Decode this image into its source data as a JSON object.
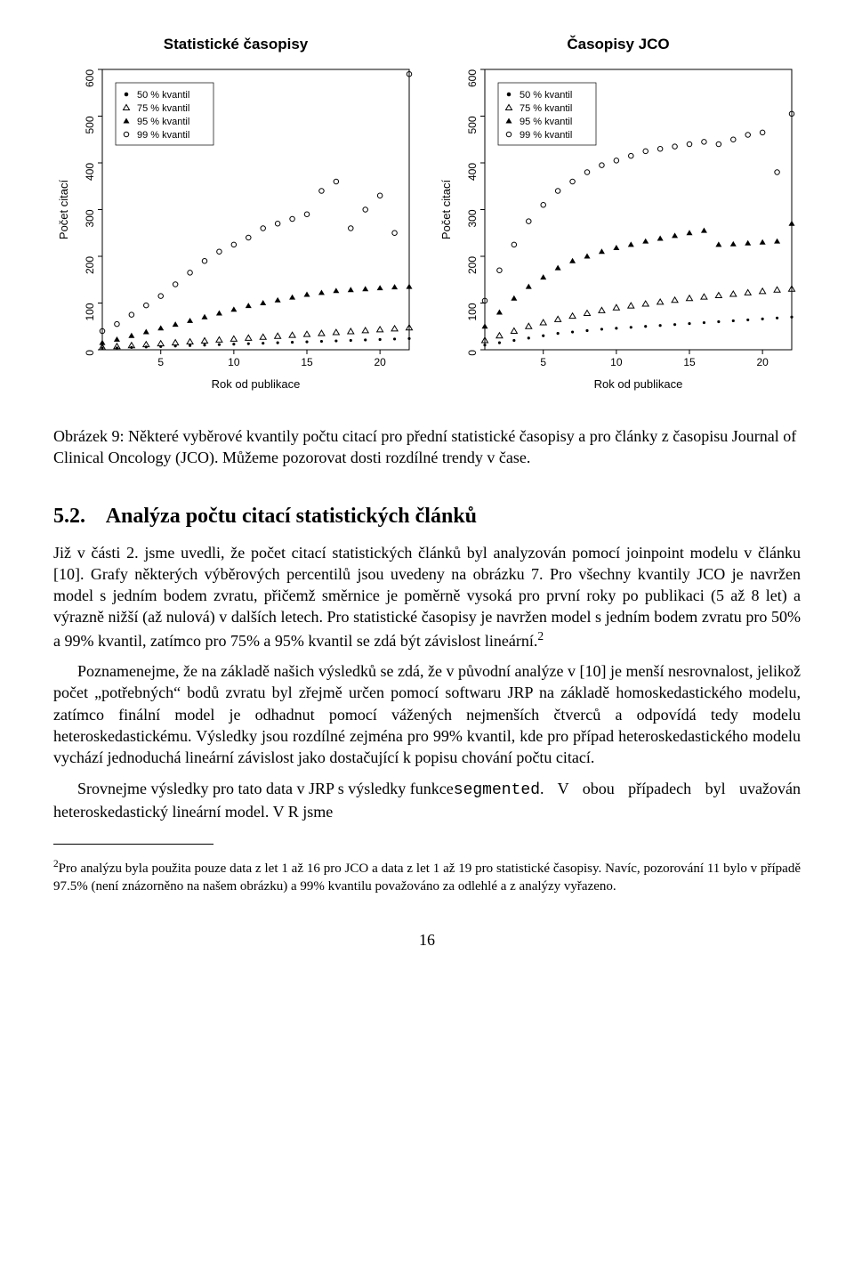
{
  "charts": {
    "left": {
      "title": "Statistické časopisy",
      "ylabel": "Počet citací",
      "xlabel": "Rok od publikace",
      "xticks": [
        5,
        10,
        15,
        20
      ],
      "yticks": [
        0,
        100,
        200,
        300,
        400,
        500,
        600
      ],
      "xlim": [
        1,
        22
      ],
      "ylim": [
        0,
        600
      ],
      "legend_items": [
        "50 % kvantil",
        "75 % kvantil",
        "95 % kvantil",
        "99 % kvantil"
      ],
      "legend_markers": [
        "filled-circle",
        "open-triangle",
        "filled-triangle",
        "open-circle"
      ],
      "q50": [
        3,
        4,
        5,
        6,
        7,
        8,
        9,
        10,
        11,
        12,
        13,
        14,
        15,
        16,
        17,
        18,
        19,
        20,
        21,
        22,
        23,
        24
      ],
      "q75": [
        5,
        7,
        9,
        11,
        13,
        15,
        17,
        19,
        21,
        23,
        25,
        27,
        29,
        31,
        33,
        35,
        37,
        39,
        41,
        43,
        45,
        47
      ],
      "q95": [
        15,
        22,
        30,
        38,
        46,
        54,
        62,
        70,
        78,
        86,
        94,
        100,
        106,
        112,
        118,
        122,
        126,
        128,
        130,
        132,
        134,
        135
      ],
      "q99": [
        40,
        55,
        75,
        95,
        115,
        140,
        165,
        190,
        210,
        225,
        240,
        260,
        270,
        280,
        290,
        340,
        360,
        260,
        300,
        330,
        250,
        590
      ],
      "marker_color": "#000000",
      "bg": "#ffffff"
    },
    "right": {
      "title": "Časopisy JCO",
      "ylabel": "Počet citací",
      "xlabel": "Rok od publikace",
      "xticks": [
        5,
        10,
        15,
        20
      ],
      "yticks": [
        0,
        100,
        200,
        300,
        400,
        500,
        600
      ],
      "xlim": [
        1,
        22
      ],
      "ylim": [
        0,
        600
      ],
      "legend_items": [
        "50 % kvantil",
        "75 % kvantil",
        "95 % kvantil",
        "99 % kvantil"
      ],
      "legend_markers": [
        "filled-circle",
        "open-triangle",
        "filled-triangle",
        "open-circle"
      ],
      "q50": [
        10,
        15,
        20,
        25,
        30,
        35,
        38,
        41,
        44,
        46,
        48,
        50,
        52,
        54,
        56,
        58,
        60,
        62,
        64,
        66,
        68,
        70
      ],
      "q75": [
        20,
        30,
        40,
        50,
        58,
        65,
        72,
        78,
        84,
        90,
        94,
        98,
        102,
        106,
        110,
        113,
        116,
        119,
        122,
        125,
        128,
        130
      ],
      "q95": [
        50,
        80,
        110,
        135,
        155,
        175,
        190,
        200,
        210,
        218,
        225,
        232,
        238,
        244,
        250,
        255,
        225,
        226,
        228,
        230,
        232,
        270
      ],
      "q99": [
        105,
        170,
        225,
        275,
        310,
        340,
        360,
        380,
        395,
        405,
        415,
        425,
        430,
        435,
        440,
        445,
        440,
        450,
        460,
        465,
        380,
        505
      ],
      "marker_color": "#000000",
      "bg": "#ffffff"
    }
  },
  "caption": "Obrázek 9: Některé vyběrové kvantily počtu citací pro přední statistické časopisy a pro články z časopisu Journal of Clinical Oncology (JCO). Můžeme pozorovat dosti rozdílné trendy v čase.",
  "section": {
    "number": "5.2.",
    "title": "Analýza počtu citací statistických článků"
  },
  "para1": "Již v části 2. jsme uvedli, že počet citací statistických článků byl analyzován pomocí joinpoint modelu v článku [10]. Grafy některých výběrových percentilů jsou uvedeny na obrázku 7. Pro všechny kvantily JCO je navržen model s jedním bodem zvratu, přičemž směrnice je poměrně vysoká pro první roky po publikaci (5 až 8 let) a výrazně nižší (až nulová) v dalších letech. Pro statistické časopisy je navržen model s jedním bodem zvratu pro 50% a 99% kvantil, zatímco pro 75% a 95% kvantil se zdá být závislost lineární.",
  "para1_sup": "2",
  "para2": "Poznamenejme, že na základě našich výsledků se zdá, že v původní analýze v [10] je menší nesrovnalost, jelikož počet „potřebných“ bodů zvratu byl zřejmě určen pomocí softwaru JRP na základě homoskedastického modelu, zatímco finální model je odhadnut pomocí vážených nejmenších čtverců a odpovídá tedy modelu heteroskedastickému. Výsledky jsou rozdílné zejména pro 99% kvantil, kde pro případ heteroskedastického modelu vychází jednoduchá lineární závislost jako dostačující k popisu chování počtu citací.",
  "para3a": "Srovnejme výsledky pro tato data v JRP s výsledky funkce ",
  "para3_code": "segmented",
  "para3b": ". V obou případech byl uvažován heteroskedastický lineární model. V R jsme",
  "footnote_sup": "2",
  "footnote": "Pro analýzu byla použita pouze data z let 1 až 16 pro JCO a data z let 1 až 19 pro statistické časopisy. Navíc, pozorování 11 bylo v případě 97.5% (není znázorněno na našem obrázku) a 99% kvantilu považováno za odlehlé a z analýzy vyřazeno.",
  "page": "16",
  "style": {
    "body_fontsize": 18,
    "heading_fontsize": 24,
    "chart_title_fontsize": 17,
    "axis_font": "Arial",
    "axis_fontsize": 12,
    "text_color": "#000000",
    "bg_color": "#ffffff"
  }
}
